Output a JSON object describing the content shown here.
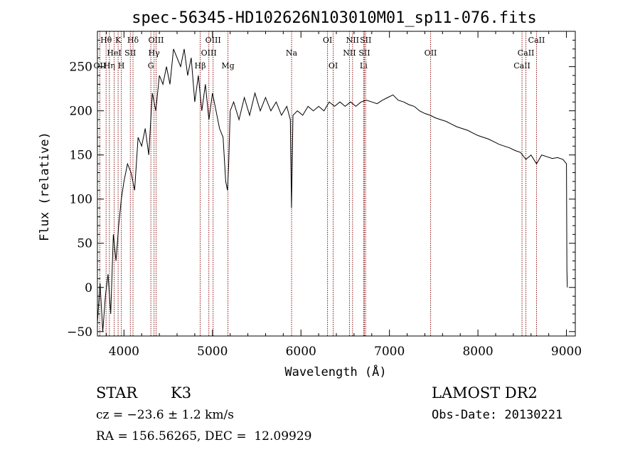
{
  "chart_data": {
    "type": "line",
    "title": "spec-56345-HD102626N103010M01_sp11-076.fits",
    "xlabel": "Wavelength (Å)",
    "ylabel": "Flux (relative)",
    "xlim": [
      3700,
      9100
    ],
    "ylim": [
      -55,
      290
    ],
    "grid": false,
    "x_ticks": [
      4000,
      5000,
      6000,
      7000,
      8000,
      9000
    ],
    "x_tick_labels": [
      "4000",
      "5000",
      "6000",
      "7000",
      "8000",
      "9000"
    ],
    "y_ticks": [
      -50,
      0,
      50,
      100,
      150,
      200,
      250
    ],
    "y_tick_labels": [
      "−50",
      "0",
      "50",
      "100",
      "150",
      "200",
      "250"
    ],
    "series": [
      {
        "color": "#000000",
        "x": [
          3700,
          3730,
          3760,
          3790,
          3820,
          3850,
          3880,
          3910,
          3940,
          3970,
          4000,
          4040,
          4080,
          4120,
          4160,
          4200,
          4240,
          4280,
          4320,
          4360,
          4400,
          4440,
          4480,
          4520,
          4560,
          4600,
          4640,
          4680,
          4720,
          4760,
          4800,
          4840,
          4880,
          4920,
          4960,
          5000,
          5040,
          5080,
          5120,
          5150,
          5170,
          5183,
          5200,
          5240,
          5300,
          5360,
          5420,
          5480,
          5540,
          5600,
          5660,
          5720,
          5780,
          5840,
          5880,
          5893,
          5910,
          5960,
          6020,
          6080,
          6140,
          6200,
          6260,
          6320,
          6380,
          6440,
          6500,
          6560,
          6620,
          6680,
          6740,
          6800,
          6860,
          6920,
          6980,
          7040,
          7100,
          7160,
          7220,
          7280,
          7340,
          7400,
          7460,
          7520,
          7580,
          7640,
          7700,
          7760,
          7820,
          7880,
          7940,
          8000,
          8060,
          8120,
          8180,
          8240,
          8300,
          8360,
          8420,
          8480,
          8542,
          8600,
          8662,
          8720,
          8780,
          8840,
          8900,
          8960,
          9000,
          9005,
          9010
        ],
        "values": [
          -40,
          5,
          -50,
          -10,
          15,
          -30,
          60,
          30,
          70,
          100,
          120,
          140,
          130,
          110,
          170,
          160,
          180,
          150,
          220,
          200,
          240,
          230,
          250,
          230,
          270,
          260,
          250,
          270,
          240,
          260,
          210,
          240,
          200,
          230,
          190,
          220,
          200,
          180,
          170,
          120,
          110,
          140,
          200,
          210,
          190,
          215,
          195,
          220,
          200,
          215,
          200,
          210,
          195,
          205,
          190,
          90,
          195,
          200,
          195,
          205,
          200,
          205,
          200,
          210,
          205,
          210,
          205,
          210,
          205,
          210,
          212,
          210,
          208,
          212,
          215,
          218,
          212,
          210,
          207,
          205,
          200,
          197,
          195,
          192,
          190,
          188,
          185,
          182,
          180,
          178,
          175,
          172,
          170,
          168,
          165,
          162,
          160,
          158,
          155,
          153,
          145,
          150,
          140,
          150,
          148,
          146,
          147,
          145,
          140,
          20,
          0
        ]
      }
    ],
    "line_markers": [
      {
        "wavelength": 3727,
        "labels": [
          {
            "text": "OII",
            "row": 3
          }
        ]
      },
      {
        "wavelength": 3798,
        "labels": [
          {
            "text": "Hθ",
            "row": 1
          }
        ]
      },
      {
        "wavelength": 3835,
        "labels": [
          {
            "text": "Hη",
            "row": 3
          }
        ]
      },
      {
        "wavelength": 3889,
        "labels": [
          {
            "text": "HeI",
            "row": 2
          }
        ]
      },
      {
        "wavelength": 3934,
        "labels": [
          {
            "text": "K",
            "row": 1
          }
        ]
      },
      {
        "wavelength": 3970,
        "labels": [
          {
            "text": "H",
            "row": 3
          }
        ]
      },
      {
        "wavelength": 4072,
        "labels": [
          {
            "text": "SII",
            "row": 2
          }
        ]
      },
      {
        "wavelength": 4102,
        "labels": [
          {
            "text": "Hδ",
            "row": 1
          }
        ]
      },
      {
        "wavelength": 4304,
        "labels": [
          {
            "text": "G",
            "row": 3
          }
        ]
      },
      {
        "wavelength": 4340,
        "labels": [
          {
            "text": "Hγ",
            "row": 2
          }
        ]
      },
      {
        "wavelength": 4363,
        "labels": [
          {
            "text": "OIII",
            "row": 1
          }
        ]
      },
      {
        "wavelength": 4861,
        "labels": [
          {
            "text": "Hβ",
            "row": 3
          }
        ]
      },
      {
        "wavelength": 4959,
        "labels": [
          {
            "text": "OIII",
            "row": 2
          }
        ]
      },
      {
        "wavelength": 5007,
        "labels": [
          {
            "text": "OIII",
            "row": 1
          }
        ]
      },
      {
        "wavelength": 5175,
        "labels": [
          {
            "text": "Mg",
            "row": 3
          }
        ]
      },
      {
        "wavelength": 5894,
        "labels": [
          {
            "text": "Na",
            "row": 2
          }
        ]
      },
      {
        "wavelength": 6300,
        "labels": [
          {
            "text": "OI",
            "row": 1
          }
        ]
      },
      {
        "wavelength": 6364,
        "labels": [
          {
            "text": "OI",
            "row": 3
          }
        ]
      },
      {
        "wavelength": 6548,
        "labels": [
          {
            "text": "NII",
            "row": 2
          }
        ]
      },
      {
        "wavelength": 6583,
        "labels": [
          {
            "text": "NII",
            "row": 1
          }
        ]
      },
      {
        "wavelength": 6708,
        "labels": [
          {
            "text": "Li",
            "row": 3
          }
        ]
      },
      {
        "wavelength": 6717,
        "labels": [
          {
            "text": "SII",
            "row": 2
          }
        ]
      },
      {
        "wavelength": 6731,
        "labels": [
          {
            "text": "SII",
            "row": 1
          }
        ]
      },
      {
        "wavelength": 7465,
        "labels": [
          {
            "text": "OII",
            "row": 2
          }
        ]
      },
      {
        "wavelength": 8498,
        "labels": [
          {
            "text": "CaII",
            "row": 3
          }
        ]
      },
      {
        "wavelength": 8542,
        "labels": [
          {
            "text": "CaII",
            "row": 2
          }
        ]
      },
      {
        "wavelength": 8662,
        "labels": [
          {
            "text": "CaII",
            "row": 1
          }
        ]
      }
    ]
  },
  "info": {
    "object_class": "STAR",
    "subclass": "K3",
    "redshift_text": "cz = −23.6 ± 1.2 km/s",
    "coords_text": "RA = 156.56265, DEC =  12.09929",
    "survey": "LAMOST DR2",
    "obs_date": "Obs-Date: 20130221"
  },
  "colors": {
    "marker": "#8b1a1a",
    "axis": "#000000",
    "background": "#ffffff"
  }
}
